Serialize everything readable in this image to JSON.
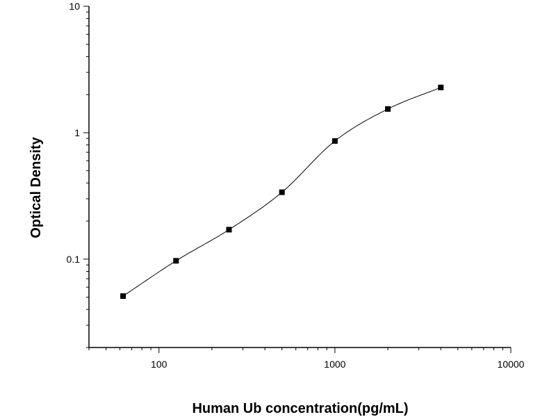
{
  "chart_data": {
    "type": "scatter",
    "title": "",
    "xlabel": "Human Ub concentration(pg/mL)",
    "ylabel": "Optical Density",
    "x_scale": "log",
    "y_scale": "log",
    "xlim": [
      40,
      10000
    ],
    "ylim": [
      0.02,
      10
    ],
    "x_ticks": [
      {
        "value": 100,
        "label": "100"
      },
      {
        "value": 1000,
        "label": "1000"
      },
      {
        "value": 10000,
        "label": "10000"
      }
    ],
    "y_ticks": [
      {
        "value": 0.1,
        "label": "0.1"
      },
      {
        "value": 1,
        "label": "1"
      },
      {
        "value": 10,
        "label": "10"
      }
    ],
    "grid": false,
    "legend": "none",
    "series": [
      {
        "points": [
          {
            "x": 62.5,
            "y": 0.051
          },
          {
            "x": 125,
            "y": 0.097
          },
          {
            "x": 250,
            "y": 0.171
          },
          {
            "x": 500,
            "y": 0.338
          },
          {
            "x": 1000,
            "y": 0.86
          },
          {
            "x": 2000,
            "y": 1.54
          },
          {
            "x": 4000,
            "y": 2.28
          }
        ],
        "marker": "square",
        "color": "#000000"
      }
    ],
    "fit_curve": {
      "type": "four-parameter-logistic",
      "color": "#000000"
    }
  }
}
